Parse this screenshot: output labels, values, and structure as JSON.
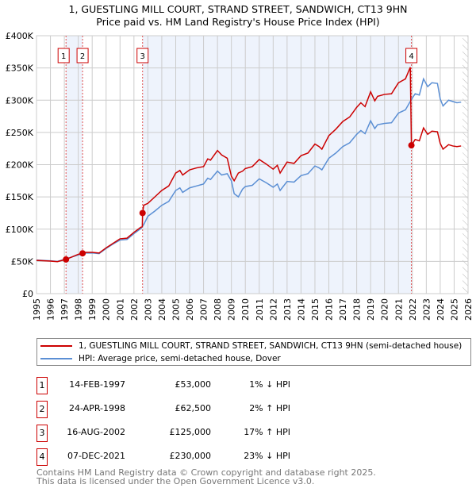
{
  "chart_data": {
    "type": "line",
    "title": "1, GUESTLING MILL COURT, STRAND STREET, SANDWICH, CT13 9HN",
    "subtitle": "Price paid vs. HM Land Registry's House Price Index (HPI)",
    "xlabel": "",
    "ylabel": "",
    "xlim": [
      1995,
      2026
    ],
    "ylim": [
      0,
      400000
    ],
    "yticks": [
      {
        "v": 0,
        "label": "£0"
      },
      {
        "v": 50000,
        "label": "£50K"
      },
      {
        "v": 100000,
        "label": "£100K"
      },
      {
        "v": 150000,
        "label": "£150K"
      },
      {
        "v": 200000,
        "label": "£200K"
      },
      {
        "v": 250000,
        "label": "£250K"
      },
      {
        "v": 300000,
        "label": "£300K"
      },
      {
        "v": 350000,
        "label": "£350K"
      },
      {
        "v": 400000,
        "label": "£400K"
      }
    ],
    "xticks": [
      "1995",
      "1996",
      "1997",
      "1998",
      "1999",
      "2000",
      "2001",
      "2002",
      "2003",
      "2004",
      "2005",
      "2006",
      "2007",
      "2008",
      "2009",
      "2010",
      "2011",
      "2012",
      "2013",
      "2014",
      "2015",
      "2016",
      "2017",
      "2018",
      "2019",
      "2020",
      "2021",
      "2022",
      "2023",
      "2024",
      "2025",
      "2026"
    ],
    "grid": true,
    "forecast_hatch_from": 2025.6,
    "shaded_ranges": [
      [
        1997.12,
        1998.31
      ],
      [
        2002.62,
        2021.93
      ]
    ],
    "series": [
      {
        "name": "1, GUESTLING MILL COURT, STRAND STREET, SANDWICH, CT13 9HN (semi-detached house)",
        "color": "#cc0000",
        "points": [
          [
            1995,
            51.5
          ],
          [
            1996,
            50.5
          ],
          [
            1996.5,
            49.5
          ],
          [
            1997,
            52.5
          ],
          [
            1997.12,
            53
          ],
          [
            1998,
            61
          ],
          [
            1998.31,
            62.5
          ],
          [
            1998.5,
            64
          ],
          [
            1999,
            64
          ],
          [
            1999.5,
            63
          ],
          [
            2000,
            71
          ],
          [
            2000.5,
            78
          ],
          [
            2001,
            85
          ],
          [
            2001.5,
            86
          ],
          [
            2002,
            95
          ],
          [
            2002.5,
            103
          ],
          [
            2002.6,
            104
          ],
          [
            2002.62,
            125
          ],
          [
            2002.7,
            137
          ],
          [
            2003,
            140
          ],
          [
            2003.5,
            150
          ],
          [
            2004,
            160
          ],
          [
            2004.5,
            167
          ],
          [
            2005,
            187
          ],
          [
            2005.3,
            191
          ],
          [
            2005.5,
            184
          ],
          [
            2006,
            192
          ],
          [
            2006.5,
            195
          ],
          [
            2007,
            197
          ],
          [
            2007.3,
            209
          ],
          [
            2007.5,
            207
          ],
          [
            2008,
            222
          ],
          [
            2008.3,
            215
          ],
          [
            2008.7,
            210
          ],
          [
            2009,
            182
          ],
          [
            2009.2,
            175
          ],
          [
            2009.5,
            187
          ],
          [
            2009.8,
            190
          ],
          [
            2010,
            194
          ],
          [
            2010.5,
            197
          ],
          [
            2011,
            208
          ],
          [
            2011.5,
            201
          ],
          [
            2012,
            193
          ],
          [
            2012.3,
            199
          ],
          [
            2012.5,
            187
          ],
          [
            2013,
            204
          ],
          [
            2013.5,
            202
          ],
          [
            2014,
            214
          ],
          [
            2014.5,
            218
          ],
          [
            2015,
            232
          ],
          [
            2015.3,
            228
          ],
          [
            2015.5,
            224
          ],
          [
            2016,
            245
          ],
          [
            2016.5,
            255
          ],
          [
            2017,
            267
          ],
          [
            2017.5,
            274
          ],
          [
            2018,
            289
          ],
          [
            2018.3,
            296
          ],
          [
            2018.6,
            290
          ],
          [
            2019,
            313
          ],
          [
            2019.3,
            299
          ],
          [
            2019.5,
            306
          ],
          [
            2020,
            309
          ],
          [
            2020.5,
            310
          ],
          [
            2021,
            327
          ],
          [
            2021.5,
            333
          ],
          [
            2021.85,
            351
          ],
          [
            2021.93,
            230
          ],
          [
            2022.2,
            239
          ],
          [
            2022.5,
            237
          ],
          [
            2022.8,
            257
          ],
          [
            2023.1,
            247
          ],
          [
            2023.4,
            252
          ],
          [
            2023.8,
            251
          ],
          [
            2024,
            233
          ],
          [
            2024.2,
            224
          ],
          [
            2024.6,
            231
          ],
          [
            2024.9,
            229
          ],
          [
            2025.2,
            228
          ],
          [
            2025.5,
            229
          ]
        ]
      },
      {
        "name": "HPI: Average price, semi-detached house, Dover",
        "color": "#5b8fd4",
        "points": [
          [
            1995,
            52
          ],
          [
            1996,
            51
          ],
          [
            1996.5,
            50
          ],
          [
            1997,
            53
          ],
          [
            1998,
            60
          ],
          [
            1998.5,
            63
          ],
          [
            1999,
            63
          ],
          [
            1999.5,
            62
          ],
          [
            2000,
            70
          ],
          [
            2000.5,
            77
          ],
          [
            2001,
            83
          ],
          [
            2001.5,
            84
          ],
          [
            2002,
            93
          ],
          [
            2002.5,
            101
          ],
          [
            2002.7,
            107
          ],
          [
            2003,
            120
          ],
          [
            2003.5,
            128
          ],
          [
            2004,
            137
          ],
          [
            2004.5,
            143
          ],
          [
            2005,
            160
          ],
          [
            2005.3,
            164
          ],
          [
            2005.5,
            157
          ],
          [
            2006,
            164
          ],
          [
            2006.5,
            167
          ],
          [
            2007,
            170
          ],
          [
            2007.3,
            179
          ],
          [
            2007.5,
            177
          ],
          [
            2008,
            190
          ],
          [
            2008.3,
            184
          ],
          [
            2008.7,
            186
          ],
          [
            2009,
            175
          ],
          [
            2009.2,
            155
          ],
          [
            2009.5,
            150
          ],
          [
            2009.8,
            162
          ],
          [
            2010,
            166
          ],
          [
            2010.5,
            168
          ],
          [
            2011,
            178
          ],
          [
            2011.5,
            172
          ],
          [
            2012,
            165
          ],
          [
            2012.3,
            170
          ],
          [
            2012.5,
            160
          ],
          [
            2013,
            174
          ],
          [
            2013.5,
            173
          ],
          [
            2014,
            183
          ],
          [
            2014.5,
            186
          ],
          [
            2015,
            198
          ],
          [
            2015.3,
            195
          ],
          [
            2015.5,
            192
          ],
          [
            2016,
            210
          ],
          [
            2016.5,
            218
          ],
          [
            2017,
            228
          ],
          [
            2017.5,
            234
          ],
          [
            2018,
            247
          ],
          [
            2018.3,
            253
          ],
          [
            2018.6,
            248
          ],
          [
            2019,
            268
          ],
          [
            2019.3,
            256
          ],
          [
            2019.5,
            262
          ],
          [
            2020,
            264
          ],
          [
            2020.5,
            265
          ],
          [
            2021,
            280
          ],
          [
            2021.5,
            285
          ],
          [
            2021.9,
            300
          ],
          [
            2022.2,
            310
          ],
          [
            2022.5,
            308
          ],
          [
            2022.8,
            333
          ],
          [
            2023.1,
            321
          ],
          [
            2023.4,
            327
          ],
          [
            2023.8,
            326
          ],
          [
            2024,
            302
          ],
          [
            2024.2,
            291
          ],
          [
            2024.6,
            300
          ],
          [
            2024.9,
            298
          ],
          [
            2025.2,
            296
          ],
          [
            2025.5,
            297
          ]
        ]
      }
    ],
    "value_unit": "thousands GBP",
    "sales": [
      {
        "label": "1",
        "x": 1997.12,
        "value": 53000
      },
      {
        "label": "2",
        "x": 1998.31,
        "value": 62500
      },
      {
        "label": "3",
        "x": 2002.62,
        "value": 125000
      },
      {
        "label": "4",
        "x": 2021.93,
        "value": 230000
      }
    ]
  },
  "legend": {
    "property": "1, GUESTLING MILL COURT, STRAND STREET, SANDWICH, CT13 9HN (semi-detached house)",
    "hpi": "HPI: Average price, semi-detached house, Dover"
  },
  "transactions": [
    {
      "num": "1",
      "date": "14-FEB-1997",
      "price": "£53,000",
      "hpi": "1% ↓ HPI"
    },
    {
      "num": "2",
      "date": "24-APR-1998",
      "price": "£62,500",
      "hpi": "2% ↑ HPI"
    },
    {
      "num": "3",
      "date": "16-AUG-2002",
      "price": "£125,000",
      "hpi": "17% ↑ HPI"
    },
    {
      "num": "4",
      "date": "07-DEC-2021",
      "price": "£230,000",
      "hpi": "23% ↓ HPI"
    }
  ],
  "footer": {
    "line1": "Contains HM Land Registry data © Crown copyright and database right 2025.",
    "line2": "This data is licensed under the Open Government Licence v3.0."
  }
}
